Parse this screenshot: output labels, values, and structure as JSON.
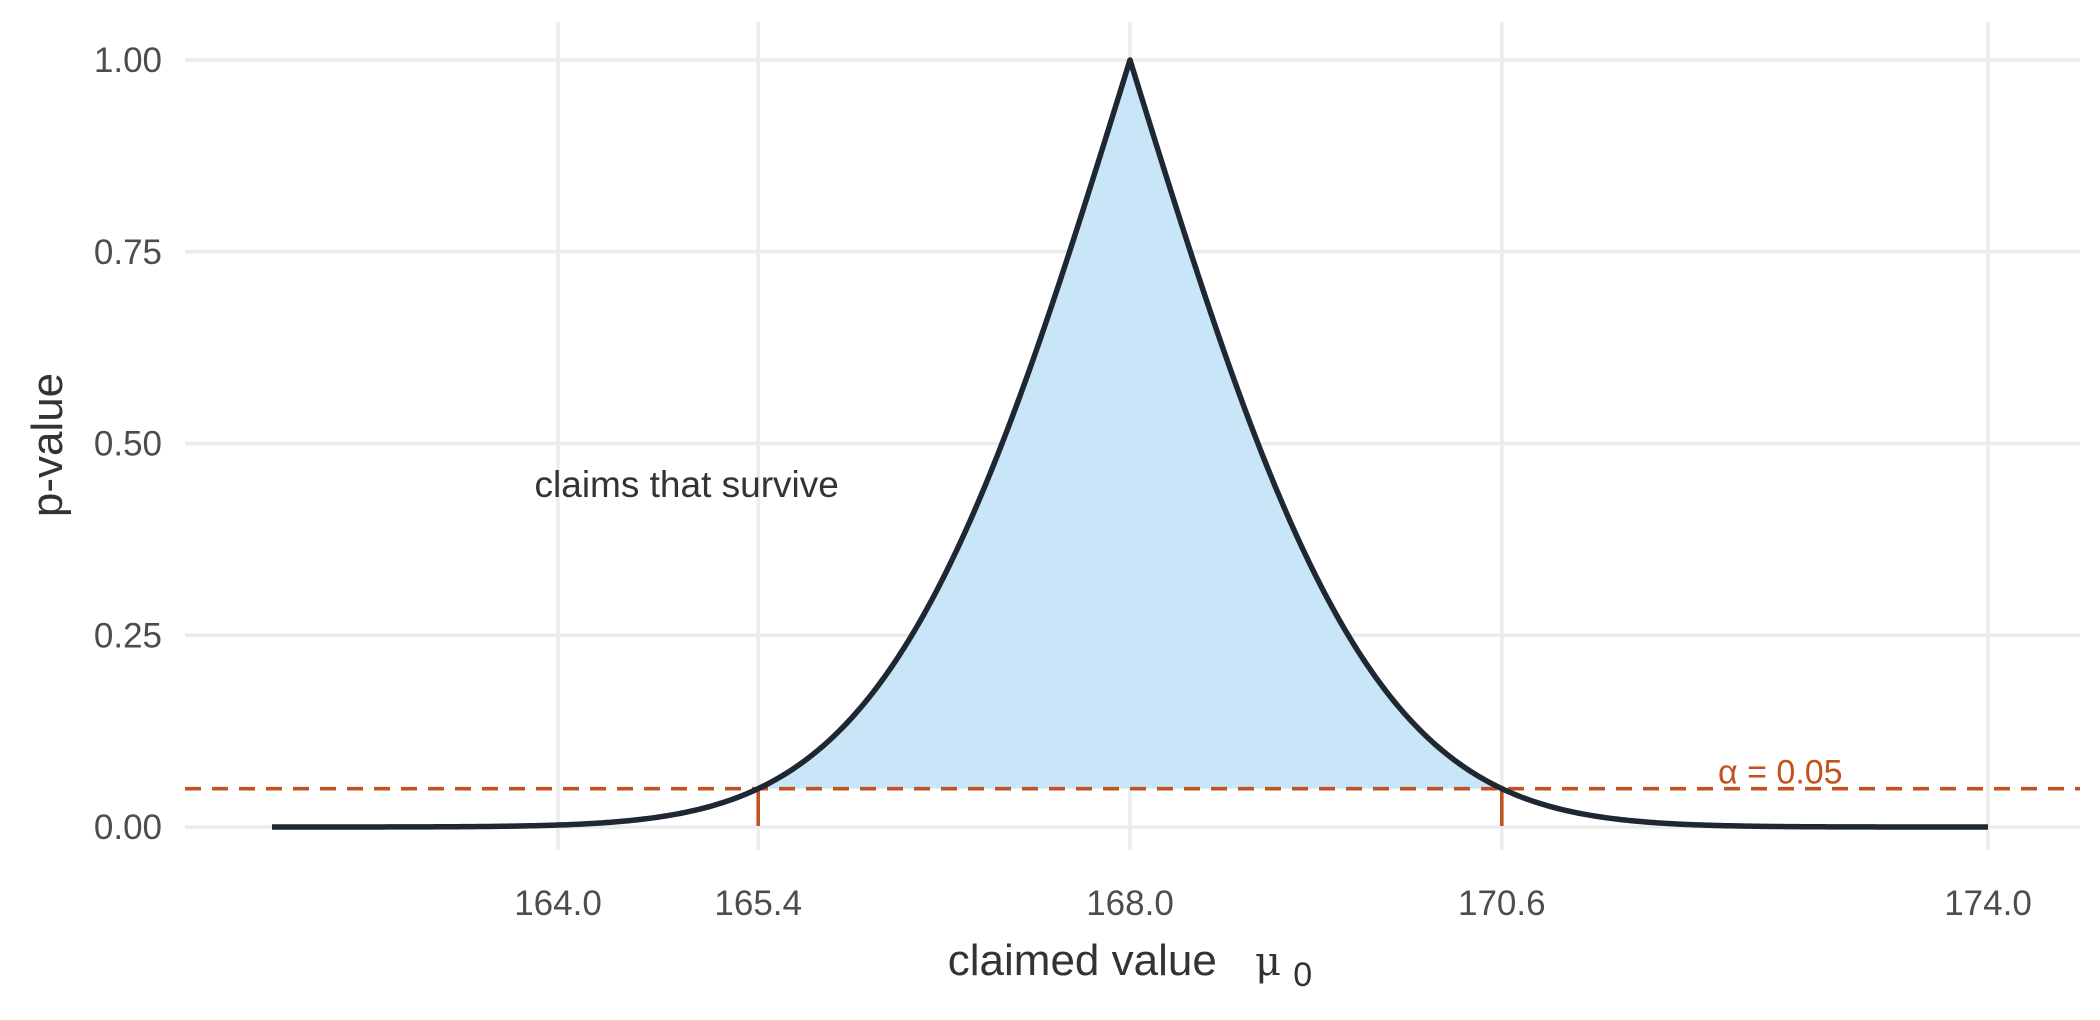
{
  "chart_data": {
    "type": "area",
    "title": "",
    "xlabel": "claimed value",
    "xlabel_symbol": "μ",
    "xlabel_subscript": "0",
    "ylabel": "p-value",
    "xlim": [
      162.0,
      174.5
    ],
    "ylim": [
      0,
      1
    ],
    "x_ticks": [
      164.0,
      165.4,
      168.0,
      170.6,
      174.0
    ],
    "x_tick_labels": [
      "164.0",
      "165.4",
      "168.0",
      "170.6",
      "174.0"
    ],
    "y_ticks": [
      0,
      0.25,
      0.5,
      0.75,
      1.0
    ],
    "y_tick_labels": [
      "0.00",
      "0.25",
      "0.50",
      "0.75",
      "1.00"
    ],
    "grid": true,
    "series": [
      {
        "estimate": 168.0,
        "ci_lower": 165.4,
        "ci_upper": 170.6,
        "x_range": [
          162.0,
          174.0
        ],
        "color": "#1f2733"
      }
    ],
    "shaded_region": {
      "x_range": [
        165.4,
        170.6
      ],
      "y_floor": 0.05,
      "color": "#c8e6f7"
    },
    "threshold": {
      "value": 0.05,
      "label": "α = 0.05",
      "color": "#c0531f"
    },
    "annotations": [
      {
        "text": "claims that survive",
        "x": 164.9,
        "y": 0.43
      }
    ]
  }
}
